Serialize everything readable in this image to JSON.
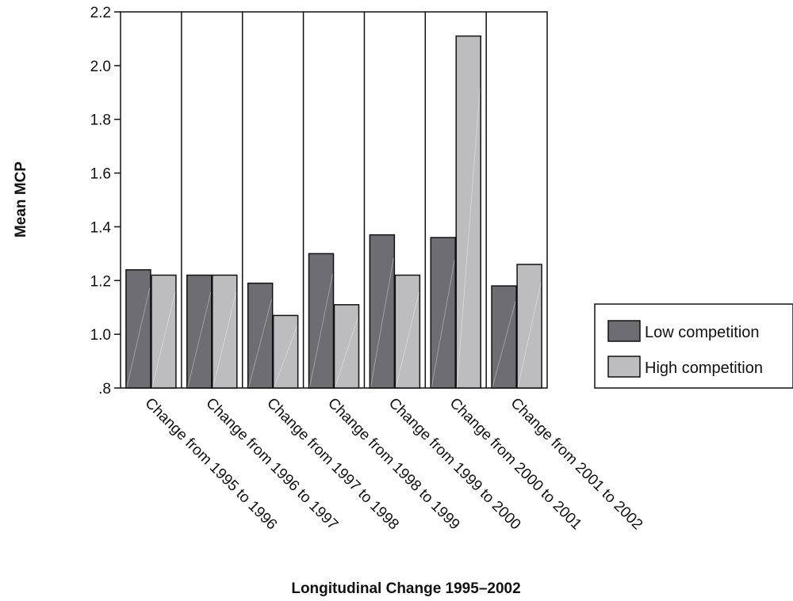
{
  "chart_data": {
    "type": "bar",
    "title": "",
    "xlabel": "Longitudinal Change 1995–2002",
    "ylabel": "Mean MCP",
    "ylim": [
      0.8,
      2.2
    ],
    "yticks": [
      0.8,
      1.0,
      1.2,
      1.4,
      1.6,
      1.8,
      2.0,
      2.2
    ],
    "ytick_labels": [
      ".8",
      "1.0",
      "1.2",
      "1.4",
      "1.6",
      "1.8",
      "2.0",
      "2.2"
    ],
    "categories": [
      "Change from 1995 to 1996",
      "Change from 1996 to 1997",
      "Change from 1997 to 1998",
      "Change from 1998 to 1999",
      "Change from 1999 to 2000",
      "Change from 2000 to 2001",
      "Change from 2001 to 2002"
    ],
    "series": [
      {
        "name": "Low competition",
        "color": "#6d6d72",
        "values": [
          1.24,
          1.22,
          1.19,
          1.3,
          1.37,
          1.36,
          1.18
        ]
      },
      {
        "name": "High competition",
        "color": "#bdbdbf",
        "values": [
          1.22,
          1.22,
          1.07,
          1.11,
          1.22,
          2.11,
          1.26
        ]
      }
    ],
    "legend_position": "right",
    "grid": false
  }
}
